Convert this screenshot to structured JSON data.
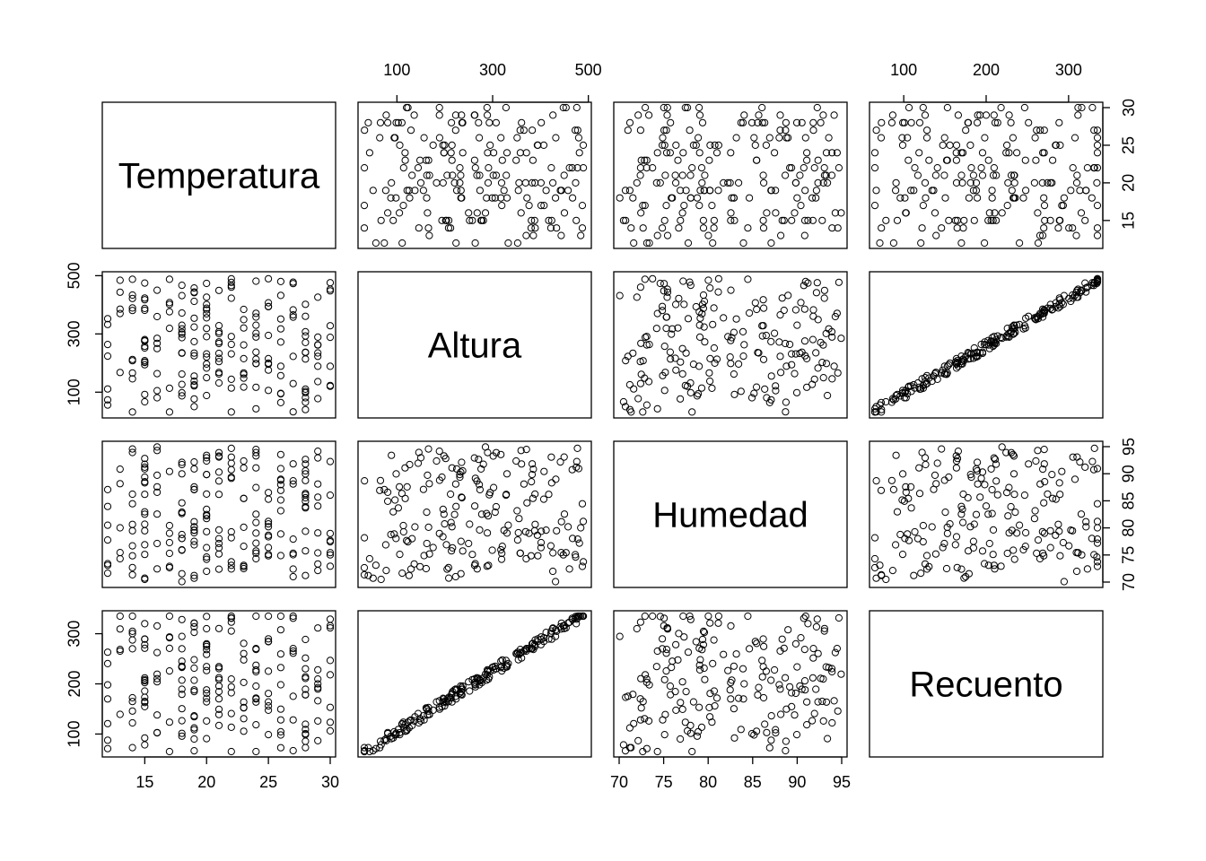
{
  "chart_data": {
    "type": "scatter",
    "subtype": "scatterplot-matrix",
    "variables": [
      {
        "name": "Temperatura",
        "range": [
          12,
          30
        ],
        "ticks": [
          15,
          20,
          25,
          30
        ]
      },
      {
        "name": "Altura",
        "range": [
          30,
          495
        ],
        "ticks": [
          100,
          300,
          500
        ]
      },
      {
        "name": "Humedad",
        "range": [
          70,
          95
        ],
        "ticks": [
          70,
          75,
          80,
          85,
          90,
          95
        ]
      },
      {
        "name": "Recuento",
        "range": [
          65,
          335
        ],
        "ticks": [
          100,
          200,
          300
        ]
      }
    ],
    "n": 200,
    "relationships": {
      "Altura~Recuento": "strong positive linear, Recuento ≈ 45 + 0.6 × Altura",
      "other_pairs": "no visible correlation"
    },
    "point_style": "open circle",
    "grid": false
  }
}
